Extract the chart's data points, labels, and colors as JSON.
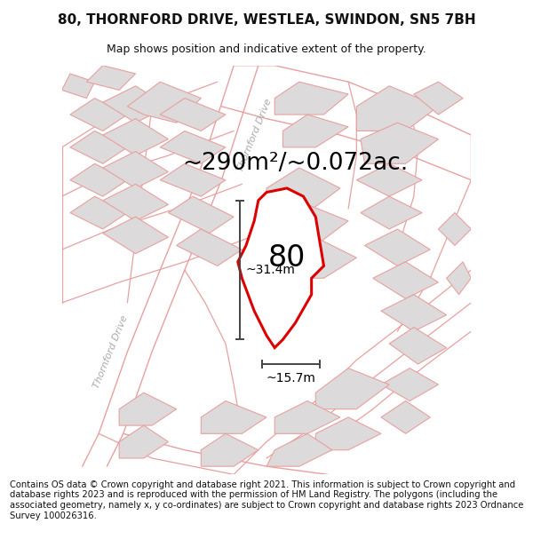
{
  "title": "80, THORNFORD DRIVE, WESTLEA, SWINDON, SN5 7BH",
  "subtitle": "Map shows position and indicative extent of the property.",
  "footer": "Contains OS data © Crown copyright and database right 2021. This information is subject to Crown copyright and database rights 2023 and is reproduced with the permission of HM Land Registry. The polygons (including the associated geometry, namely x, y co-ordinates) are subject to Crown copyright and database rights 2023 Ordnance Survey 100026316.",
  "area_label": "~290m²/~0.072ac.",
  "width_label": "~15.7m",
  "height_label": "~31.4m",
  "plot_number": "80",
  "map_bg_color": "#f5f3f3",
  "plot_outline_color": "#dd0000",
  "building_fill": "#dcdada",
  "building_outline": "#e8a0a0",
  "road_outline_color": "#e8a0a0",
  "dim_line_color": "#444444",
  "street_label_color": "#aaaaaa",
  "title_fontsize": 11,
  "subtitle_fontsize": 9,
  "footer_fontsize": 7.2,
  "area_fontsize": 19,
  "plot_number_fontsize": 24,
  "dim_fontsize": 10
}
